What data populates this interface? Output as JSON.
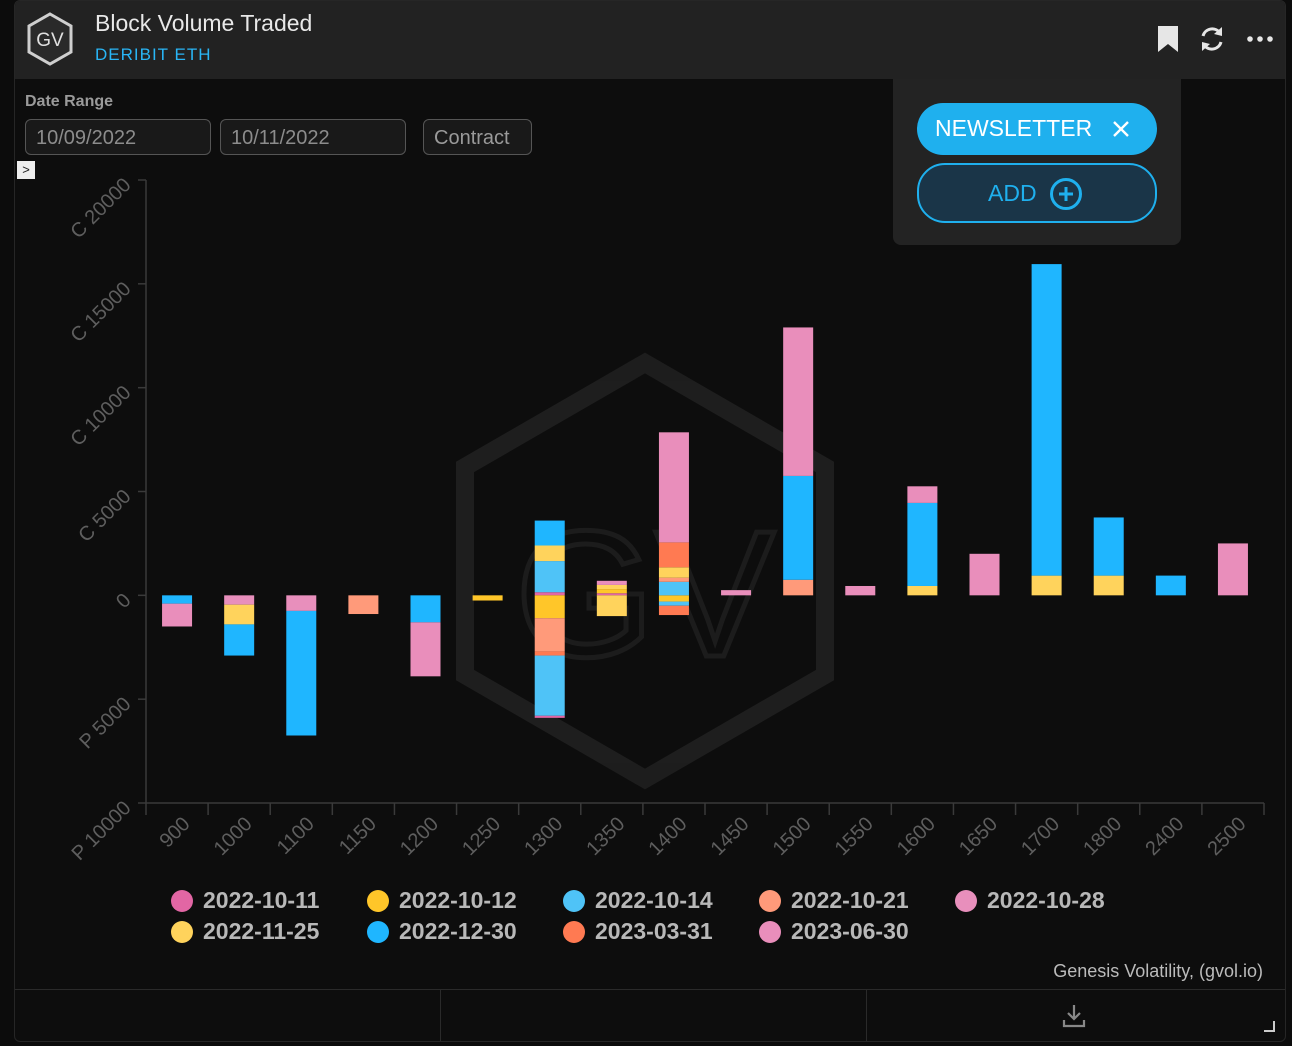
{
  "header": {
    "title": "Block Volume Traded",
    "subtitle": "DERIBIT ETH",
    "logo_text": "GV",
    "icons": [
      "bookmark-icon",
      "refresh-icon",
      "more-icon"
    ]
  },
  "filters": {
    "date_range_label": "Date Range",
    "start_date": "10/09/2022",
    "end_date": "10/11/2022",
    "contract_label": "Contract",
    "expander_glyph": ">"
  },
  "popup": {
    "newsletter_label": "NEWSLETTER",
    "add_label": "ADD"
  },
  "credit": "Genesis Volatility, (gvol.io)",
  "watermark_text": "GV",
  "colors": {
    "accent": "#1fb0ee",
    "2022-10-11": "#e266a4",
    "2022-10-12": "#ffc629",
    "2022-10-14": "#4fc3f7",
    "2022-10-21": "#ff9a7a",
    "2022-10-28": "#e88fbc",
    "2022-11-25": "#ffd35c",
    "2022-12-30": "#1fb6ff",
    "2023-03-31": "#ff7a52",
    "2023-06-30": "#e98ebb"
  },
  "chart_data": {
    "type": "bar",
    "stacked": true,
    "title": "",
    "xlabel": "",
    "ylabel": "",
    "ylim": [
      -10000,
      20000
    ],
    "ytick_values": [
      -10000,
      -5000,
      0,
      5000,
      10000,
      15000,
      20000
    ],
    "ytick_labels": [
      "P 10000",
      "P 5000",
      "0",
      "C 5000",
      "C 10000",
      "C 15000",
      "C 20000"
    ],
    "categories": [
      "900",
      "1000",
      "1100",
      "1150",
      "1200",
      "1250",
      "1300",
      "1350",
      "1400",
      "1450",
      "1500",
      "1550",
      "1600",
      "1650",
      "1700",
      "1800",
      "2400",
      "2500"
    ],
    "legend_position": "bottom",
    "grid": false,
    "series": [
      {
        "name": "2022-10-11",
        "values": [
          0,
          0,
          0,
          0,
          0,
          0,
          150,
          100,
          0,
          0,
          0,
          0,
          0,
          0,
          0,
          0,
          0,
          0
        ]
      },
      {
        "name": "2022-10-12",
        "values": [
          0,
          0,
          0,
          0,
          0,
          -250,
          -1100,
          200,
          -300,
          0,
          0,
          0,
          0,
          0,
          0,
          0,
          0,
          0
        ]
      },
      {
        "name": "2022-10-14",
        "values": [
          0,
          0,
          0,
          0,
          0,
          0,
          1500,
          0,
          650,
          0,
          0,
          0,
          0,
          0,
          0,
          0,
          0,
          0
        ]
      },
      {
        "name": "2022-10-21",
        "values": [
          0,
          0,
          0,
          -900,
          0,
          0,
          -1600,
          0,
          200,
          0,
          750,
          0,
          0,
          0,
          0,
          0,
          0,
          0
        ]
      },
      {
        "name": "2022-10-28",
        "values": [
          0,
          -450,
          -750,
          0,
          0,
          0,
          0,
          0,
          0,
          0,
          0,
          0,
          0,
          0,
          0,
          0,
          0,
          0
        ]
      },
      {
        "name": "2022-11-25",
        "values": [
          0,
          -950,
          0,
          0,
          0,
          0,
          750,
          200,
          500,
          0,
          0,
          0,
          450,
          0,
          950,
          950,
          0,
          0
        ]
      },
      {
        "name": "2022-12-30",
        "values": [
          -400,
          -1500,
          -6000,
          0,
          -1300,
          0,
          1200,
          0,
          0,
          0,
          5000,
          0,
          4000,
          0,
          15000,
          2800,
          950,
          0
        ]
      },
      {
        "name": "2023-03-31",
        "values": [
          0,
          0,
          0,
          0,
          0,
          0,
          -200,
          0,
          1200,
          0,
          0,
          0,
          0,
          0,
          0,
          0,
          0,
          0
        ]
      },
      {
        "name": "2023-06-30",
        "values": [
          -1100,
          0,
          0,
          0,
          -2600,
          0,
          0,
          200,
          5300,
          250,
          7150,
          450,
          800,
          2000,
          0,
          0,
          0,
          2500
        ]
      }
    ],
    "extra_negative_segments": [
      {
        "category": "1300",
        "series": "2022-10-14",
        "value": -2900
      },
      {
        "category": "1300",
        "series": "2022-10-11",
        "value": -100
      },
      {
        "category": "1350",
        "series": "2022-11-25",
        "value": -1000
      },
      {
        "category": "1400",
        "series": "2022-10-14",
        "value": -200
      },
      {
        "category": "1400",
        "series": "2023-03-31",
        "value": -450
      }
    ]
  }
}
